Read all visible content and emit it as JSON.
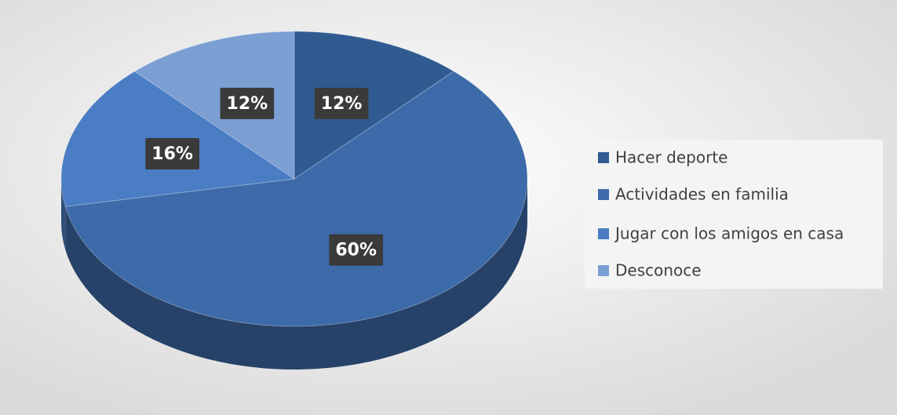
{
  "chart_data": {
    "type": "pie",
    "categories": [
      "Hacer deporte",
      "Actividades en familia",
      "Jugar con los amigos en casa",
      "Desconoce"
    ],
    "values": [
      12,
      60,
      16,
      12
    ],
    "value_labels": [
      "12%",
      "60%",
      "16%",
      "12%"
    ],
    "colors": [
      "#2f5b91",
      "#3d6aa8",
      "#4a7dc3",
      "#7b9fd3"
    ],
    "legend": "right"
  }
}
